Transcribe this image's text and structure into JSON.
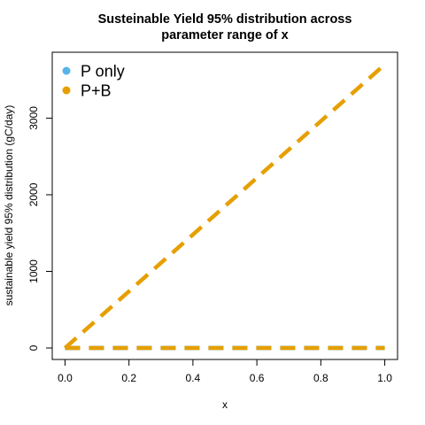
{
  "chart_data": {
    "type": "line",
    "title_lines": [
      "Susteinable Yield 95% distribution across",
      "parameter range of x"
    ],
    "xlabel": "x",
    "ylabel": "sustainable yield 95% distribution (gC/day)",
    "xlim": [
      -0.04,
      1.04
    ],
    "ylim": [
      -150,
      3860
    ],
    "x_ticks": [
      0.0,
      0.2,
      0.4,
      0.6,
      0.8,
      1.0
    ],
    "x_tick_labels": [
      "0.0",
      "0.2",
      "0.4",
      "0.6",
      "0.8",
      "1.0"
    ],
    "y_ticks": [
      0,
      1000,
      2000,
      3000
    ],
    "y_tick_labels": [
      "0",
      "1000",
      "2000",
      "3000"
    ],
    "legend_position": "top-left",
    "series": [
      {
        "name": "P only",
        "color": "#56B4E9",
        "line_style": "dashed",
        "x": [
          0.0,
          1.0
        ],
        "upper": [
          0,
          0
        ],
        "lower": [
          0,
          0
        ]
      },
      {
        "name": "P+B",
        "color": "#E69F00",
        "line_style": "dashed",
        "x": [
          0.0,
          1.0
        ],
        "upper": [
          0,
          3700
        ],
        "lower": [
          0,
          0
        ]
      }
    ]
  }
}
